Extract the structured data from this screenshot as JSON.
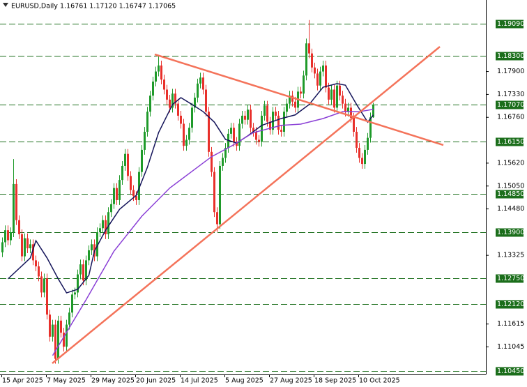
{
  "chart_data": {
    "type": "candlestick",
    "title": "EURUSD,Daily",
    "info": "1.16761 1.17120 1.16747 1.17065",
    "up_color": "#1f9a2a",
    "down_color": "#e8302b",
    "level_color": "#1b6e1b",
    "ylim": [
      1.1036,
      1.1968
    ],
    "yticks": [
      {
        "value": 1.179,
        "label": "1.17900"
      },
      {
        "value": 1.1733,
        "label": "1.17330"
      },
      {
        "value": 1.1676,
        "label": "1.16760"
      },
      {
        "value": 1.1562,
        "label": "1.15620"
      },
      {
        "value": 1.1505,
        "label": "1.15050"
      },
      {
        "value": 1.1448,
        "label": "1.14480"
      },
      {
        "value": 1.13325,
        "label": "1.13325"
      },
      {
        "value": 1.11615,
        "label": "1.11615"
      },
      {
        "value": 1.11045,
        "label": "1.11045"
      }
    ],
    "levels": [
      {
        "value": 1.1909,
        "label": "1.19090"
      },
      {
        "value": 1.183,
        "label": "1.18300"
      },
      {
        "value": 1.1707,
        "label": "1.17070"
      },
      {
        "value": 1.1615,
        "label": "1.16150"
      },
      {
        "value": 1.1485,
        "label": "1.14850"
      },
      {
        "value": 1.139,
        "label": "1.13900"
      },
      {
        "value": 1.1275,
        "label": "1.12750"
      },
      {
        "value": 1.1212,
        "label": "1.12120"
      },
      {
        "value": 1.1045,
        "label": "1.10450"
      }
    ],
    "categories": [
      "15 Apr 2025",
      null,
      null,
      null,
      null,
      null,
      null,
      null,
      null,
      null,
      null,
      null,
      null,
      null,
      null,
      null,
      "7 May 2025",
      null,
      null,
      null,
      null,
      null,
      null,
      null,
      null,
      null,
      null,
      null,
      null,
      null,
      null,
      null,
      "29 May 2025",
      null,
      null,
      null,
      null,
      null,
      null,
      null,
      null,
      null,
      null,
      null,
      null,
      null,
      null,
      null,
      "20 Jun 2025",
      null,
      null,
      null,
      null,
      null,
      null,
      null,
      null,
      null,
      null,
      null,
      null,
      null,
      null,
      null,
      "14 Jul 2025",
      null,
      null,
      null,
      null,
      null,
      null,
      null,
      null,
      null,
      null,
      null,
      null,
      null,
      null,
      null,
      "5 Aug 2025",
      null,
      null,
      null,
      null,
      null,
      null,
      null,
      null,
      null,
      null,
      null,
      null,
      null,
      null,
      null,
      "27 Aug 2025",
      null,
      null,
      null,
      null,
      null,
      null,
      null,
      null,
      null,
      null,
      null,
      null,
      null,
      null,
      null,
      "18 Sep 2025",
      null,
      null,
      null,
      null,
      null,
      null,
      null,
      null,
      null,
      null,
      null,
      null,
      null,
      null,
      null,
      "10 Oct 2025",
      null,
      null,
      null,
      null,
      null
    ],
    "open": [
      1.134,
      1.1365,
      1.1395,
      1.137,
      1.139,
      1.151,
      1.142,
      1.1385,
      1.133,
      1.1375,
      1.135,
      1.136,
      1.132,
      1.1305,
      1.128,
      1.124,
      1.1275,
      1.1185,
      1.113,
      1.116,
      1.1075,
      1.117,
      1.114,
      1.1105,
      1.116,
      1.119,
      1.1235,
      1.124,
      1.1285,
      1.131,
      1.127,
      1.132,
      1.1345,
      1.136,
      1.133,
      1.139,
      1.14,
      1.142,
      1.1385,
      1.144,
      1.146,
      1.15,
      1.147,
      1.152,
      1.1555,
      1.1585,
      1.153,
      1.1495,
      1.148,
      1.147,
      1.154,
      1.1595,
      1.164,
      1.169,
      1.173,
      1.1765,
      1.179,
      1.1805,
      1.177,
      1.1745,
      1.172,
      1.17,
      1.1735,
      1.171,
      1.168,
      1.166,
      1.1605,
      1.162,
      1.165,
      1.17,
      1.1725,
      1.176,
      1.1775,
      1.1745,
      1.169,
      1.159,
      1.154,
      1.144,
      1.141,
      1.1555,
      1.1575,
      1.16,
      1.1635,
      1.165,
      1.1615,
      1.1605,
      1.166,
      1.168,
      1.167,
      1.1695,
      1.165,
      1.164,
      1.162,
      1.1615,
      1.168,
      1.1705,
      1.1665,
      1.1645,
      1.169,
      1.168,
      1.1645,
      1.164,
      1.169,
      1.171,
      1.173,
      1.1715,
      1.17,
      1.174,
      1.1735,
      1.178,
      1.186,
      1.1835,
      1.18,
      1.1785,
      1.1755,
      1.179,
      1.1805,
      1.175,
      1.172,
      1.1745,
      1.17,
      1.1755,
      1.173,
      1.171,
      1.169,
      1.17,
      1.1675,
      1.164,
      1.16,
      1.1575,
      1.156,
      1.1595,
      1.1625,
      1.16761
    ],
    "high": [
      1.1377,
      1.1407,
      1.1407,
      1.1402,
      1.1572,
      1.1522,
      1.1432,
      1.1397,
      1.1387,
      1.1387,
      1.1372,
      1.1372,
      1.1332,
      1.1317,
      1.1292,
      1.1287,
      1.1287,
      1.1197,
      1.1172,
      1.1172,
      1.1182,
      1.1182,
      1.1152,
      1.1172,
      1.1202,
      1.1247,
      1.1252,
      1.1297,
      1.1322,
      1.1322,
      1.1332,
      1.1357,
      1.1372,
      1.1372,
      1.1402,
      1.1412,
      1.1432,
      1.1432,
      1.1452,
      1.1472,
      1.1512,
      1.1512,
      1.1532,
      1.1567,
      1.1597,
      1.1597,
      1.1542,
      1.1507,
      1.1492,
      1.1552,
      1.1607,
      1.1652,
      1.1702,
      1.1742,
      1.1777,
      1.1802,
      1.183,
      1.1817,
      1.1782,
      1.1757,
      1.1732,
      1.1747,
      1.1747,
      1.1722,
      1.1692,
      1.1672,
      1.1632,
      1.1662,
      1.1712,
      1.1737,
      1.1772,
      1.1787,
      1.1787,
      1.1757,
      1.1702,
      1.1602,
      1.1552,
      1.1452,
      1.1567,
      1.1587,
      1.1612,
      1.1647,
      1.1662,
      1.1662,
      1.1627,
      1.1672,
      1.1692,
      1.1692,
      1.1707,
      1.1707,
      1.1662,
      1.1652,
      1.1632,
      1.1692,
      1.1717,
      1.1717,
      1.1677,
      1.1702,
      1.1702,
      1.1692,
      1.1657,
      1.1702,
      1.1722,
      1.1742,
      1.1742,
      1.1727,
      1.1752,
      1.1752,
      1.1792,
      1.1872,
      1.1918,
      1.1847,
      1.1812,
      1.1797,
      1.1802,
      1.1817,
      1.1817,
      1.1762,
      1.1757,
      1.1757,
      1.1767,
      1.1767,
      1.1742,
      1.1722,
      1.1712,
      1.1712,
      1.1687,
      1.1652,
      1.1612,
      1.1587,
      1.1607,
      1.1637,
      1.1688,
      1.1712
    ],
    "low": [
      1.1328,
      1.1353,
      1.1358,
      1.1358,
      1.1378,
      1.1408,
      1.1373,
      1.1318,
      1.1318,
      1.1338,
      1.1338,
      1.1308,
      1.1293,
      1.1268,
      1.1228,
      1.1228,
      1.1173,
      1.1118,
      1.1118,
      1.1063,
      1.1063,
      1.1128,
      1.1093,
      1.1093,
      1.1148,
      1.1178,
      1.1223,
      1.1228,
      1.1273,
      1.1258,
      1.1258,
      1.1308,
      1.1333,
      1.1318,
      1.1318,
      1.1378,
      1.1388,
      1.1373,
      1.1373,
      1.1428,
      1.1448,
      1.1458,
      1.1458,
      1.1508,
      1.1543,
      1.1518,
      1.1483,
      1.1468,
      1.1458,
      1.1458,
      1.1528,
      1.1583,
      1.1628,
      1.1678,
      1.1718,
      1.1753,
      1.1778,
      1.1758,
      1.1733,
      1.1708,
      1.1688,
      1.1688,
      1.1698,
      1.1668,
      1.1648,
      1.1593,
      1.1593,
      1.1608,
      1.1638,
      1.1688,
      1.1713,
      1.1748,
      1.1733,
      1.1678,
      1.1578,
      1.1528,
      1.1428,
      1.1391,
      1.1398,
      1.1543,
      1.1563,
      1.1588,
      1.1623,
      1.1603,
      1.1593,
      1.1593,
      1.1648,
      1.1658,
      1.1658,
      1.1638,
      1.1628,
      1.1608,
      1.1603,
      1.1603,
      1.1668,
      1.1653,
      1.1633,
      1.1633,
      1.1668,
      1.1633,
      1.1628,
      1.1628,
      1.1678,
      1.1698,
      1.1703,
      1.1688,
      1.1688,
      1.1723,
      1.1723,
      1.1768,
      1.1823,
      1.1788,
      1.1773,
      1.1743,
      1.1743,
      1.1778,
      1.1738,
      1.1708,
      1.1708,
      1.1688,
      1.1688,
      1.1718,
      1.1698,
      1.1678,
      1.1678,
      1.1663,
      1.1628,
      1.1588,
      1.1563,
      1.1548,
      1.1548,
      1.1583,
      1.1613,
      1.16747
    ],
    "close": [
      1.1365,
      1.1395,
      1.137,
      1.139,
      1.151,
      1.142,
      1.1385,
      1.133,
      1.1375,
      1.135,
      1.136,
      1.132,
      1.1305,
      1.128,
      1.124,
      1.1275,
      1.1185,
      1.113,
      1.116,
      1.1075,
      1.117,
      1.114,
      1.1105,
      1.116,
      1.119,
      1.1235,
      1.124,
      1.1285,
      1.131,
      1.127,
      1.132,
      1.1345,
      1.136,
      1.133,
      1.139,
      1.14,
      1.142,
      1.1385,
      1.144,
      1.146,
      1.15,
      1.147,
      1.152,
      1.1555,
      1.1585,
      1.153,
      1.1495,
      1.148,
      1.147,
      1.154,
      1.1595,
      1.164,
      1.169,
      1.173,
      1.1765,
      1.179,
      1.1805,
      1.177,
      1.1745,
      1.172,
      1.17,
      1.1735,
      1.171,
      1.168,
      1.166,
      1.1605,
      1.162,
      1.165,
      1.17,
      1.1725,
      1.176,
      1.1775,
      1.1745,
      1.169,
      1.159,
      1.154,
      1.144,
      1.141,
      1.1555,
      1.1575,
      1.16,
      1.1635,
      1.165,
      1.1615,
      1.1605,
      1.166,
      1.168,
      1.167,
      1.1695,
      1.165,
      1.164,
      1.162,
      1.1615,
      1.168,
      1.1705,
      1.1665,
      1.1645,
      1.169,
      1.168,
      1.1645,
      1.164,
      1.169,
      1.171,
      1.173,
      1.1715,
      1.17,
      1.174,
      1.1735,
      1.178,
      1.186,
      1.1835,
      1.18,
      1.1785,
      1.1755,
      1.179,
      1.1805,
      1.175,
      1.172,
      1.1745,
      1.17,
      1.1755,
      1.173,
      1.171,
      1.169,
      1.17,
      1.1675,
      1.164,
      1.16,
      1.1575,
      1.156,
      1.1595,
      1.1625,
      1.1676,
      1.17065
    ],
    "moving_averages": [
      {
        "color": "#14145a",
        "x": [
          2,
          10,
          12,
          16,
          20,
          23,
          27,
          31,
          33,
          37,
          42,
          48,
          52,
          56,
          61,
          64,
          68,
          72,
          76,
          80,
          84,
          88,
          93,
          100,
          105,
          110,
          115,
          120,
          123,
          127,
          131,
          133
        ],
        "values": [
          1.1274,
          1.1326,
          1.1369,
          1.1326,
          1.1274,
          1.1239,
          1.1248,
          1.1283,
          1.1343,
          1.1395,
          1.1447,
          1.1482,
          1.1552,
          1.1638,
          1.1708,
          1.1725,
          1.1708,
          1.169,
          1.1664,
          1.1621,
          1.1612,
          1.163,
          1.1656,
          1.1673,
          1.1682,
          1.1708,
          1.1751,
          1.176,
          1.1756,
          1.1708,
          1.1664,
          1.1682
        ]
      },
      {
        "color": "#8a3fd6",
        "x": [
          18,
          30,
          40,
          50,
          60,
          70,
          75,
          82,
          90,
          100,
          107,
          115,
          122,
          128,
          133
        ],
        "values": [
          1.1083,
          1.1222,
          1.1343,
          1.143,
          1.15,
          1.1552,
          1.1578,
          1.1604,
          1.1638,
          1.1656,
          1.1659,
          1.1673,
          1.169,
          1.169,
          1.1696
        ]
      }
    ]
  }
}
